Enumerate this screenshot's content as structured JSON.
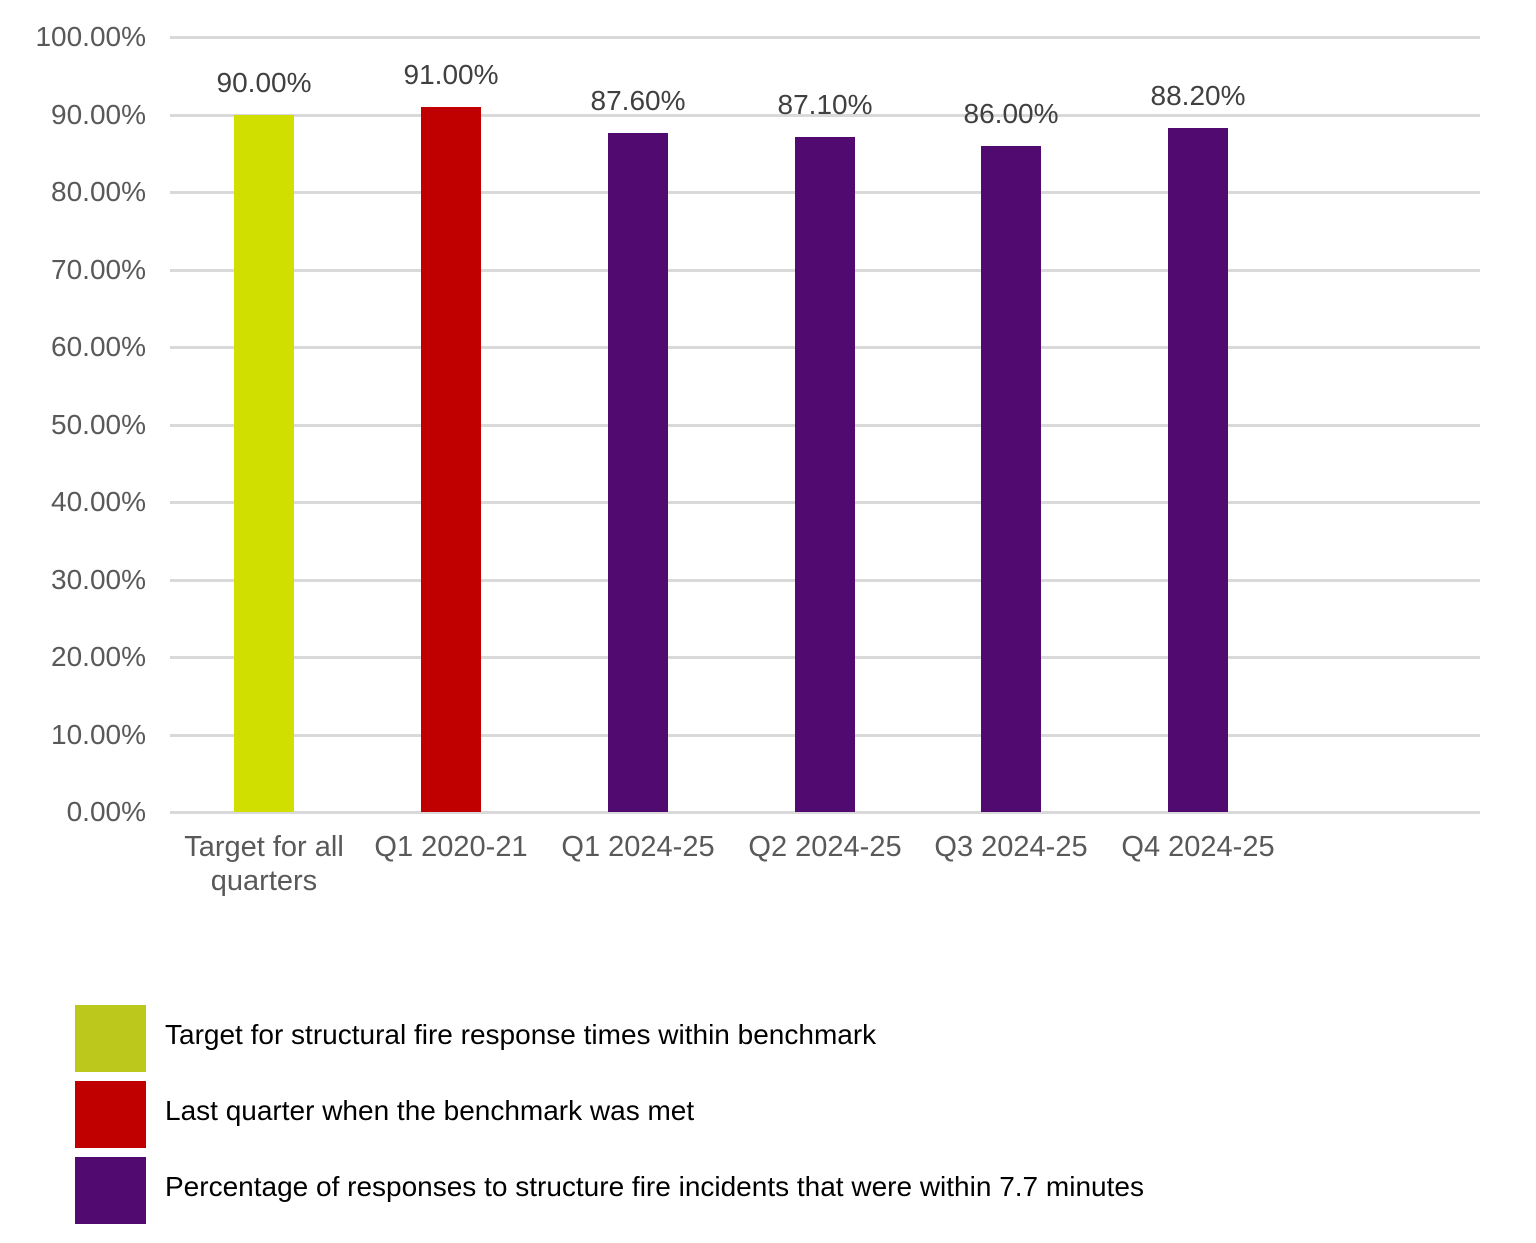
{
  "chart_data": {
    "type": "bar",
    "title": "",
    "xlabel": "",
    "ylabel": "",
    "ylim": [
      0,
      100
    ],
    "grid": true,
    "legend_position": "bottom",
    "y_ticks": [
      "0.00%",
      "10.00%",
      "20.00%",
      "30.00%",
      "40.00%",
      "50.00%",
      "60.00%",
      "70.00%",
      "80.00%",
      "90.00%",
      "100.00%"
    ],
    "categories": [
      "Target for all quarters",
      "Q1 2020-21",
      "Q1 2024-25",
      "Q2 2024-25",
      "Q3 2024-25",
      "Q4 2024-25"
    ],
    "values": [
      90.0,
      91.0,
      87.6,
      87.1,
      86.0,
      88.2
    ],
    "data_labels": [
      "90.00%",
      "91.00%",
      "87.60%",
      "87.10%",
      "86.00%",
      "88.20%"
    ],
    "bar_colors": [
      "#d0de00",
      "#c00000",
      "#500a70",
      "#500a70",
      "#500a70",
      "#500a70"
    ],
    "legend": [
      {
        "label": "Target for structural fire response times within benchmark",
        "color": "#bcc81c"
      },
      {
        "label": "Last quarter when the benchmark was met",
        "color": "#c00000"
      },
      {
        "label": "Percentage of responses to structure fire incidents that were within 7.7 minutes",
        "color": "#500a70"
      }
    ]
  }
}
